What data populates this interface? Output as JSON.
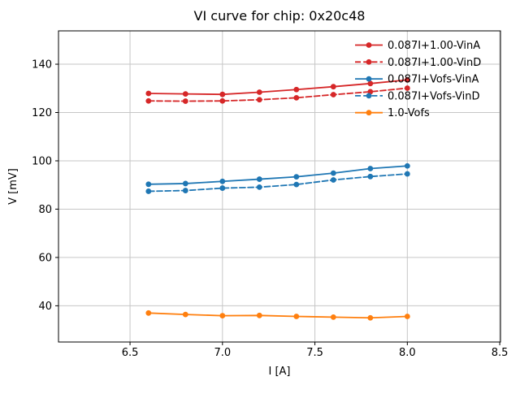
{
  "figure": {
    "background": "#ffffff",
    "axis_color": "#000000",
    "grid_color": "#c6c6c6",
    "text_color": "#000000"
  },
  "chart_data": {
    "type": "line",
    "title": "VI curve for chip: 0x20c48",
    "xlabel": "I [A]",
    "ylabel": "V [mV]",
    "grid": true,
    "legend_position": "upper right",
    "legend_frame": false,
    "xlim": [
      6.113,
      8.504
    ],
    "ylim": [
      25.0,
      153.8
    ],
    "xticks": [
      {
        "value": 6.5,
        "label": "6.5"
      },
      {
        "value": 7.0,
        "label": "7.0"
      },
      {
        "value": 7.5,
        "label": "7.5"
      },
      {
        "value": 8.0,
        "label": "8.0"
      },
      {
        "value": 8.5,
        "label": "8.5"
      }
    ],
    "yticks": [
      {
        "value": 40,
        "label": "40"
      },
      {
        "value": 60,
        "label": "60"
      },
      {
        "value": 80,
        "label": "80"
      },
      {
        "value": 100,
        "label": "100"
      },
      {
        "value": 120,
        "label": "120"
      },
      {
        "value": 140,
        "label": "140"
      }
    ],
    "x": [
      6.6,
      6.8,
      7.0,
      7.2,
      7.4,
      7.6,
      7.8,
      8.0
    ],
    "series": [
      {
        "name": "0.087I+1.00-VinA",
        "color": "#d62728",
        "linestyle": "solid",
        "marker": "circle",
        "values": [
          127.9,
          127.7,
          127.5,
          128.4,
          129.5,
          130.7,
          132.0,
          133.5
        ]
      },
      {
        "name": "0.087I+1.00-VinD",
        "color": "#d62728",
        "linestyle": "dashed",
        "marker": "circle",
        "values": [
          124.8,
          124.7,
          124.8,
          125.3,
          126.1,
          127.4,
          128.6,
          130.1
        ]
      },
      {
        "name": "0.087I+Vofs-VinA",
        "color": "#1f77b4",
        "linestyle": "solid",
        "marker": "circle",
        "values": [
          90.3,
          90.6,
          91.5,
          92.4,
          93.4,
          94.9,
          96.8,
          97.9
        ]
      },
      {
        "name": "0.087I+Vofs-VinD",
        "color": "#1f77b4",
        "linestyle": "dashed",
        "marker": "circle",
        "values": [
          87.4,
          87.7,
          88.7,
          89.1,
          90.2,
          92.1,
          93.5,
          94.6
        ]
      },
      {
        "name": "1.0-Vofs",
        "color": "#ff7f0e",
        "linestyle": "solid",
        "marker": "circle",
        "values": [
          37.0,
          36.4,
          35.9,
          36.0,
          35.6,
          35.3,
          35.0,
          35.6
        ]
      }
    ]
  }
}
